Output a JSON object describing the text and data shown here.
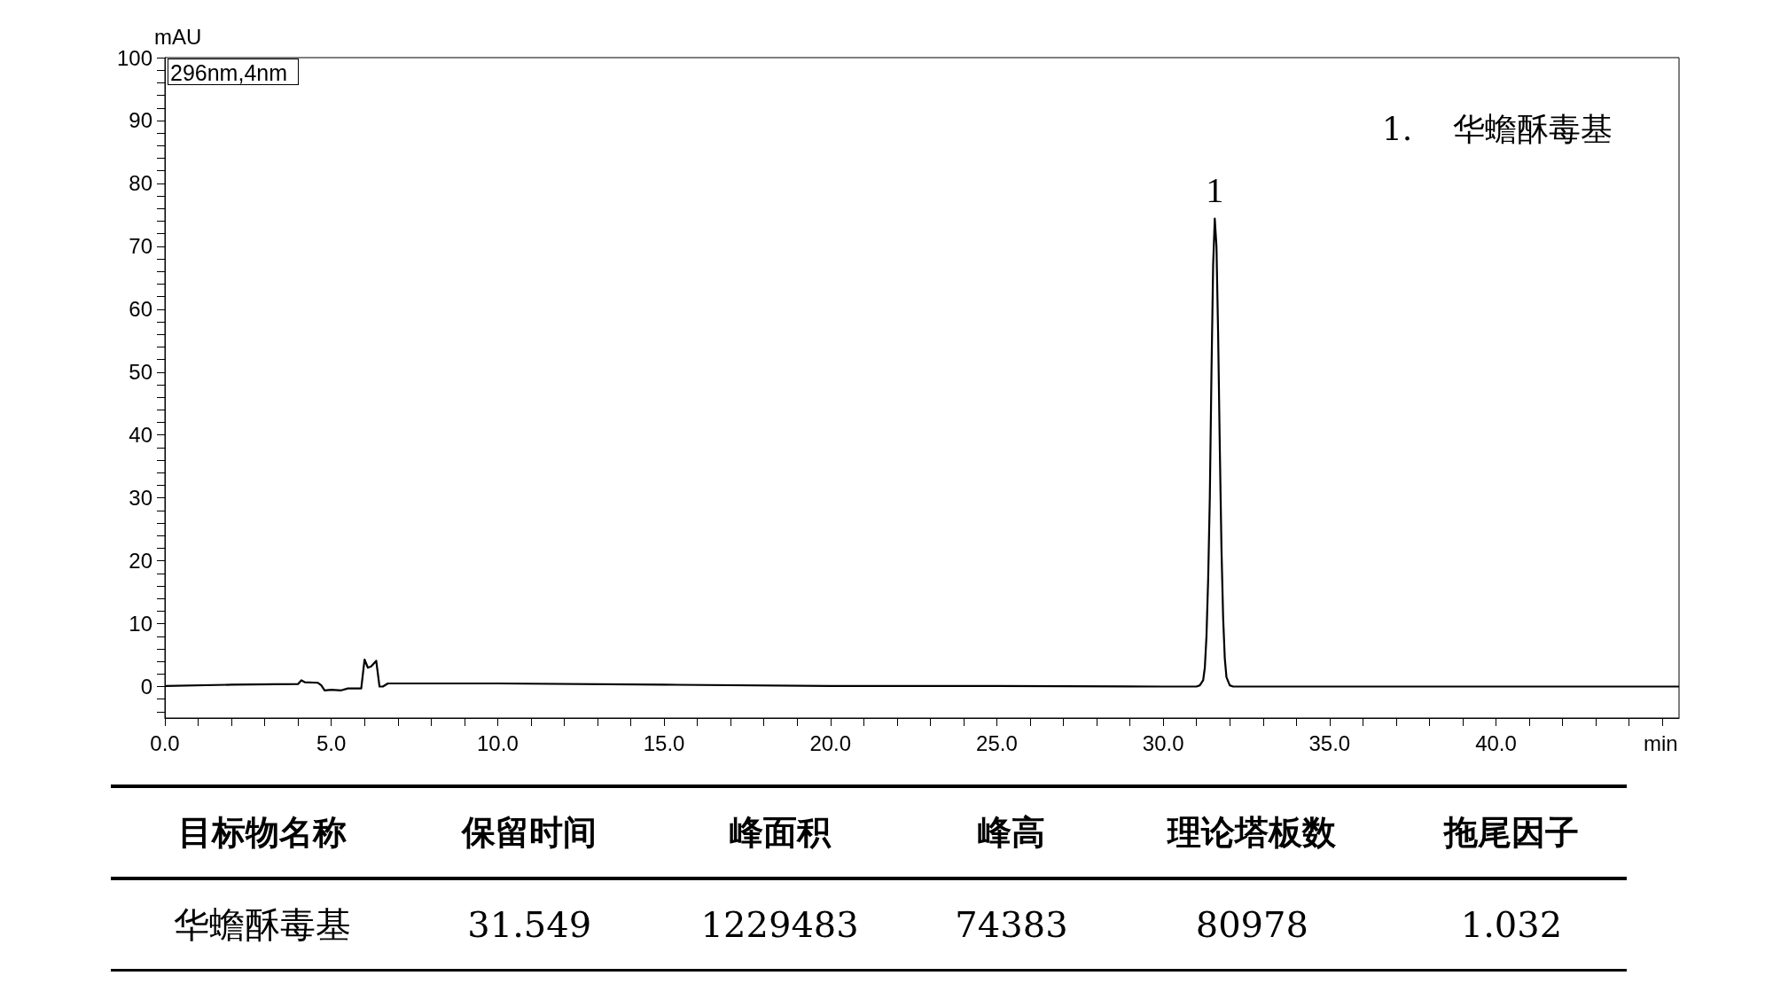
{
  "chart_data": {
    "type": "line",
    "xlabel": "min",
    "ylabel": "mAU",
    "x": [
      0,
      2,
      4,
      4.1,
      4.2,
      4.6,
      4.7,
      4.8,
      5.0,
      5.3,
      5.5,
      5.9,
      6.0,
      6.1,
      6.2,
      6.35,
      6.45,
      6.55,
      6.7,
      8,
      10,
      15,
      20,
      25,
      30,
      31.0,
      31.1,
      31.2,
      31.25,
      31.3,
      31.35,
      31.4,
      31.45,
      31.5,
      31.549,
      31.6,
      31.65,
      31.7,
      31.75,
      31.8,
      31.85,
      31.9,
      32.0,
      32.1,
      32.2,
      35,
      40,
      45.5
    ],
    "series": [
      {
        "color": "#000000",
        "values": [
          0.1,
          0.3,
          0.4,
          1.0,
          0.7,
          0.6,
          0.2,
          -0.6,
          -0.5,
          -0.6,
          -0.3,
          -0.3,
          4.3,
          3.0,
          3.2,
          4.1,
          0.0,
          0.0,
          0.5,
          0.5,
          0.5,
          0.3,
          0.1,
          0.1,
          0.0,
          0.0,
          0.2,
          1.0,
          3.0,
          8.0,
          17,
          30,
          50,
          67,
          74.4,
          70,
          56,
          38,
          22,
          11,
          4.5,
          1.5,
          0.2,
          0.0,
          0.0,
          0.0,
          0.0,
          0.0
        ]
      }
    ],
    "xlim": [
      0,
      45.5
    ],
    "ylim": [
      -5,
      100
    ],
    "xticks": [
      {
        "value": 0,
        "label": "0.0"
      },
      {
        "value": 1,
        "label": null
      },
      {
        "value": 2,
        "label": null
      },
      {
        "value": 3,
        "label": null
      },
      {
        "value": 4,
        "label": null
      },
      {
        "value": 5,
        "label": "5.0"
      },
      {
        "value": 6,
        "label": null
      },
      {
        "value": 7,
        "label": null
      },
      {
        "value": 8,
        "label": null
      },
      {
        "value": 9,
        "label": null
      },
      {
        "value": 10,
        "label": "10.0"
      },
      {
        "value": 11,
        "label": null
      },
      {
        "value": 12,
        "label": null
      },
      {
        "value": 13,
        "label": null
      },
      {
        "value": 14,
        "label": null
      },
      {
        "value": 15,
        "label": "15.0"
      },
      {
        "value": 16,
        "label": null
      },
      {
        "value": 17,
        "label": null
      },
      {
        "value": 18,
        "label": null
      },
      {
        "value": 19,
        "label": null
      },
      {
        "value": 20,
        "label": "20.0"
      },
      {
        "value": 21,
        "label": null
      },
      {
        "value": 22,
        "label": null
      },
      {
        "value": 23,
        "label": null
      },
      {
        "value": 24,
        "label": null
      },
      {
        "value": 25,
        "label": "25.0"
      },
      {
        "value": 26,
        "label": null
      },
      {
        "value": 27,
        "label": null
      },
      {
        "value": 28,
        "label": null
      },
      {
        "value": 29,
        "label": null
      },
      {
        "value": 30,
        "label": "30.0"
      },
      {
        "value": 31,
        "label": null
      },
      {
        "value": 32,
        "label": null
      },
      {
        "value": 33,
        "label": null
      },
      {
        "value": 34,
        "label": null
      },
      {
        "value": 35,
        "label": "35.0"
      },
      {
        "value": 36,
        "label": null
      },
      {
        "value": 37,
        "label": null
      },
      {
        "value": 38,
        "label": null
      },
      {
        "value": 39,
        "label": null
      },
      {
        "value": 40,
        "label": "40.0"
      },
      {
        "value": 41,
        "label": null
      },
      {
        "value": 42,
        "label": null
      },
      {
        "value": 43,
        "label": null
      },
      {
        "value": 44,
        "label": null
      },
      {
        "value": 45,
        "label": null
      }
    ],
    "yticks": [
      {
        "value": -4,
        "label": null
      },
      {
        "value": -2,
        "label": null
      },
      0,
      {
        "value": 2,
        "label": null
      },
      {
        "value": 4,
        "label": null
      },
      {
        "value": 6,
        "label": null
      },
      {
        "value": 8,
        "label": null
      },
      10,
      {
        "value": 12,
        "label": null
      },
      {
        "value": 14,
        "label": null
      },
      {
        "value": 16,
        "label": null
      },
      {
        "value": 18,
        "label": null
      },
      20,
      {
        "value": 22,
        "label": null
      },
      {
        "value": 24,
        "label": null
      },
      {
        "value": 26,
        "label": null
      },
      {
        "value": 28,
        "label": null
      },
      30,
      {
        "value": 32,
        "label": null
      },
      {
        "value": 34,
        "label": null
      },
      {
        "value": 36,
        "label": null
      },
      {
        "value": 38,
        "label": null
      },
      40,
      {
        "value": 42,
        "label": null
      },
      {
        "value": 44,
        "label": null
      },
      {
        "value": 46,
        "label": null
      },
      {
        "value": 48,
        "label": null
      },
      50,
      {
        "value": 52,
        "label": null
      },
      {
        "value": 54,
        "label": null
      },
      {
        "value": 56,
        "label": null
      },
      {
        "value": 58,
        "label": null
      },
      60,
      {
        "value": 62,
        "label": null
      },
      {
        "value": 64,
        "label": null
      },
      {
        "value": 66,
        "label": null
      },
      {
        "value": 68,
        "label": null
      },
      70,
      {
        "value": 72,
        "label": null
      },
      {
        "value": 74,
        "label": null
      },
      {
        "value": 76,
        "label": null
      },
      {
        "value": 78,
        "label": null
      },
      80,
      {
        "value": 82,
        "label": null
      },
      {
        "value": 84,
        "label": null
      },
      {
        "value": 86,
        "label": null
      },
      {
        "value": 88,
        "label": null
      },
      90,
      {
        "value": 92,
        "label": null
      },
      {
        "value": 94,
        "label": null
      },
      {
        "value": 96,
        "label": null
      },
      {
        "value": 98,
        "label": null
      },
      100
    ],
    "marker": "none",
    "line_style": "solid",
    "grid": false,
    "annotations": [
      "296nm,4nm",
      {
        "text": "1",
        "x": 31.549,
        "y": 74.4
      },
      "1.    华蟾酥毒基",
      "目标物名称",
      "保留时间",
      "峰面积",
      "峰高",
      "理论塔板数",
      "拖尾因子",
      "华蟾酥毒基",
      "31.549",
      "1229483",
      "74383",
      "80978",
      "1.032"
    ]
  }
}
